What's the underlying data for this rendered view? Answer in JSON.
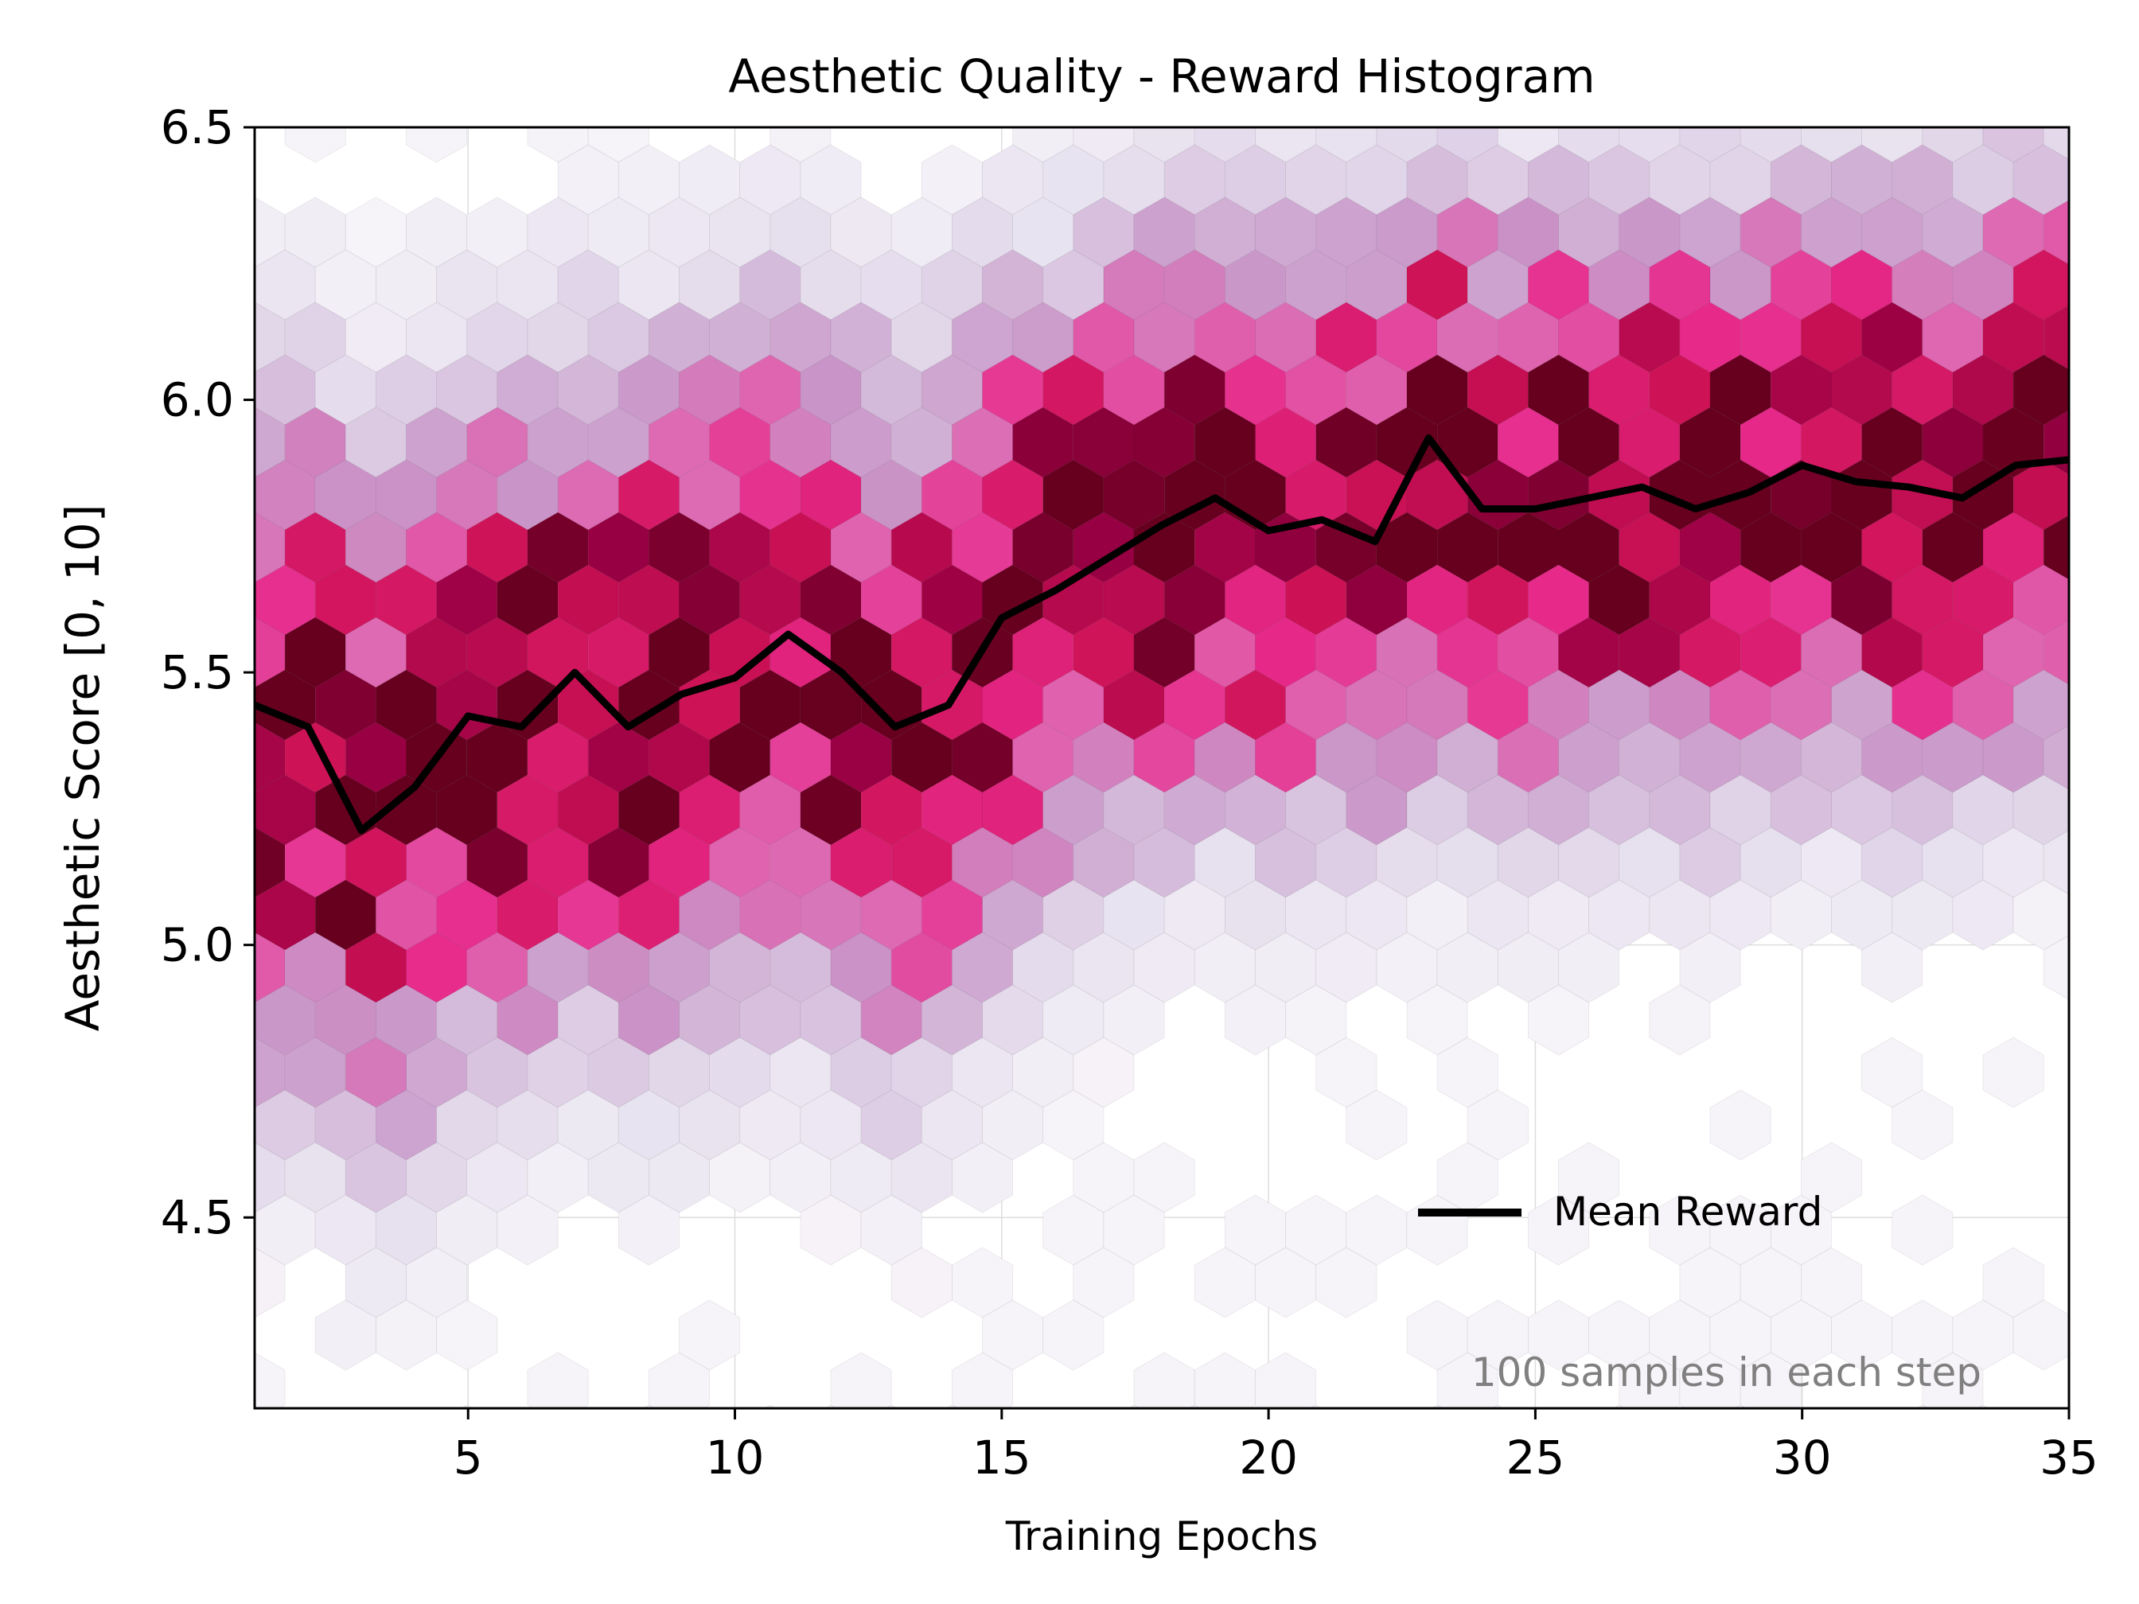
{
  "chart_data": {
    "type": "heatmap",
    "subtype": "hexbin",
    "title": "Aesthetic Quality - Reward Histogram",
    "xlabel": "Training Epochs",
    "ylabel": "Aesthetic Score [0, 10]",
    "xlim": [
      1,
      35
    ],
    "ylim": [
      4.15,
      6.5
    ],
    "xticks": [
      5,
      10,
      15,
      20,
      25,
      30,
      35
    ],
    "xtick_labels": [
      "5",
      "10",
      "15",
      "20",
      "25",
      "30",
      "35"
    ],
    "yticks": [
      4.5,
      5.0,
      5.5,
      6.0,
      6.5
    ],
    "ytick_labels": [
      "4.5",
      "5.0",
      "5.5",
      "6.0",
      "6.5"
    ],
    "grid": true,
    "legend": {
      "placement": "lower-right",
      "entries": [
        "Mean Reward"
      ]
    },
    "annotation": "100 samples in each step",
    "colors": {
      "line": "#000000",
      "density_low": "#f4eef6",
      "density_mid": "#e7298a",
      "density_high": "#67001f"
    },
    "colormap": "PuRd",
    "density_bands": [
      {
        "x_range": [
          1,
          15
        ],
        "center": [
          5.35,
          5.4,
          5.2,
          5.3,
          5.42,
          5.4,
          5.5,
          5.42,
          5.46,
          5.5,
          5.56,
          5.5,
          5.4,
          5.44,
          5.6
        ],
        "spread": 0.42
      },
      {
        "x_range": [
          16,
          35
        ],
        "center": [
          5.66,
          5.7,
          5.76,
          5.82,
          5.75,
          5.78,
          5.74,
          5.92,
          5.8,
          5.8,
          5.82,
          5.84,
          5.8,
          5.83,
          5.88,
          5.85,
          5.84,
          5.83,
          5.88,
          5.9
        ],
        "spread": 0.38
      }
    ],
    "series": [
      {
        "name": "Mean Reward",
        "x": [
          1,
          2,
          3,
          4,
          5,
          6,
          7,
          8,
          9,
          10,
          11,
          12,
          13,
          14,
          15,
          16,
          17,
          18,
          19,
          20,
          21,
          22,
          23,
          24,
          25,
          26,
          27,
          28,
          29,
          30,
          31,
          32,
          33,
          34,
          35
        ],
        "y": [
          5.44,
          5.4,
          5.21,
          5.29,
          5.42,
          5.4,
          5.5,
          5.4,
          5.46,
          5.49,
          5.57,
          5.5,
          5.4,
          5.44,
          5.6,
          5.65,
          5.71,
          5.77,
          5.82,
          5.76,
          5.78,
          5.74,
          5.93,
          5.8,
          5.8,
          5.82,
          5.84,
          5.8,
          5.83,
          5.88,
          5.85,
          5.84,
          5.82,
          5.88,
          5.89
        ]
      }
    ]
  }
}
